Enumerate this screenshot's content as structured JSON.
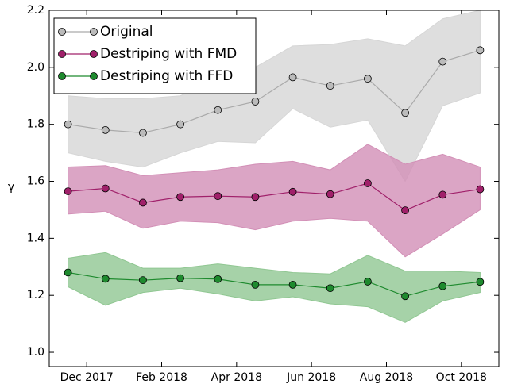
{
  "chart_data": {
    "type": "line",
    "ylabel": "γ",
    "x": [
      "2017-11",
      "2017-12",
      "2018-01",
      "2018-02",
      "2018-03",
      "2018-04",
      "2018-05",
      "2018-06",
      "2018-07",
      "2018-08",
      "2018-09",
      "2018-10"
    ],
    "xlim": [
      "2017-11",
      "2018-11"
    ],
    "xticks": [
      {
        "value": "2017-12",
        "label": "Dec 2017"
      },
      {
        "value": "2018-02",
        "label": "Feb 2018"
      },
      {
        "value": "2018-04",
        "label": "Apr 2018"
      },
      {
        "value": "2018-06",
        "label": "Jun 2018"
      },
      {
        "value": "2018-08",
        "label": "Aug 2018"
      },
      {
        "value": "2018-10",
        "label": "Oct 2018"
      }
    ],
    "ylim": [
      0.95,
      2.2
    ],
    "yticks": [
      {
        "value": 1.0,
        "label": "1.0"
      },
      1.2,
      1.4,
      1.6,
      1.8,
      {
        "value": 2.0,
        "label": "2.0"
      },
      2.2
    ],
    "legend": "upper left",
    "series": [
      {
        "name": "Original",
        "color": "#aaaaaa",
        "marker_color": "#bbbbbb",
        "band_color": "#d6d6d6",
        "values": [
          1.8,
          1.78,
          1.77,
          1.8,
          1.85,
          1.88,
          1.965,
          1.935,
          1.96,
          1.84,
          2.02,
          2.06
        ],
        "upper": [
          1.9,
          1.89,
          1.89,
          1.9,
          1.96,
          2.0,
          2.075,
          2.08,
          2.1,
          2.075,
          2.17,
          2.2
        ],
        "lower": [
          1.7,
          1.67,
          1.65,
          1.7,
          1.74,
          1.735,
          1.855,
          1.79,
          1.815,
          1.6,
          1.865,
          1.91
        ]
      },
      {
        "name": "Destriping with FMD",
        "color": "#a0206a",
        "marker_color": "#a0206a",
        "band_color": "#d28fb6",
        "values": [
          1.565,
          1.575,
          1.525,
          1.545,
          1.548,
          1.545,
          1.563,
          1.555,
          1.593,
          1.498,
          1.553,
          1.572
        ],
        "upper": [
          1.65,
          1.655,
          1.62,
          1.63,
          1.64,
          1.66,
          1.67,
          1.64,
          1.73,
          1.66,
          1.695,
          1.65
        ],
        "lower": [
          1.485,
          1.495,
          1.435,
          1.46,
          1.455,
          1.43,
          1.46,
          1.47,
          1.46,
          1.335,
          1.415,
          1.5
        ]
      },
      {
        "name": "Destriping with FFD",
        "color": "#1e8a2e",
        "marker_color": "#1e8a2e",
        "band_color": "#90c792",
        "values": [
          1.28,
          1.258,
          1.253,
          1.26,
          1.257,
          1.237,
          1.237,
          1.225,
          1.248,
          1.197,
          1.232,
          1.247
        ],
        "upper": [
          1.33,
          1.35,
          1.295,
          1.295,
          1.31,
          1.295,
          1.28,
          1.275,
          1.34,
          1.285,
          1.285,
          1.28
        ],
        "lower": [
          1.23,
          1.165,
          1.21,
          1.225,
          1.205,
          1.18,
          1.195,
          1.17,
          1.16,
          1.105,
          1.18,
          1.21
        ]
      }
    ]
  }
}
